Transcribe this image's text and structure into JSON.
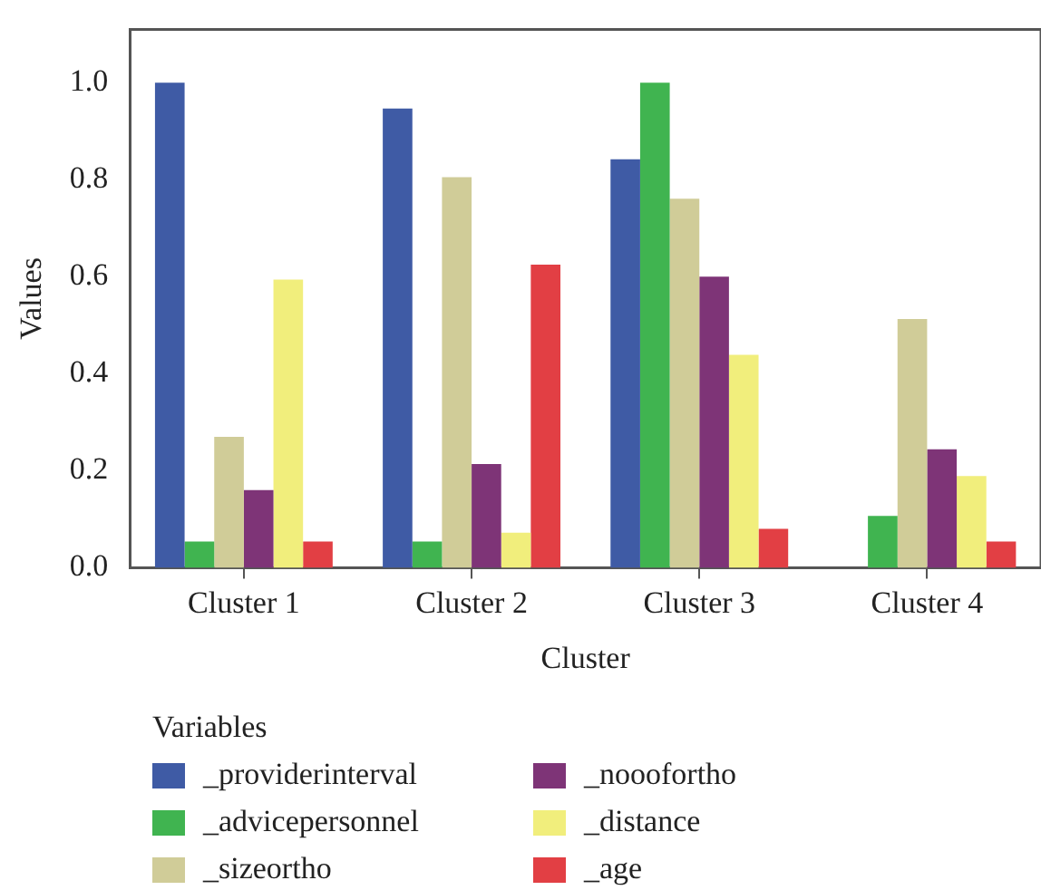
{
  "chart_data": {
    "type": "bar",
    "xlabel": "Cluster",
    "ylabel": "Values",
    "legend_title": "Variables",
    "categories": [
      "Cluster 1",
      "Cluster 2",
      "Cluster 3",
      "Cluster 4"
    ],
    "series": [
      {
        "name": "_providerinterval",
        "color": "#3f5ba5",
        "values": [
          1.0,
          0.947,
          0.842,
          0
        ]
      },
      {
        "name": "_advicepersonnel",
        "color": "#40b450",
        "values": [
          0.054,
          0.054,
          1.0,
          0.107
        ]
      },
      {
        "name": "_sizeortho",
        "color": "#d0cc98",
        "values": [
          0.27,
          0.805,
          0.761,
          0.513
        ]
      },
      {
        "name": "_nooofortho",
        "color": "#7e3477",
        "values": [
          0.16,
          0.214,
          0.6,
          0.244
        ]
      },
      {
        "name": "_distance",
        "color": "#f1ee7c",
        "values": [
          0.594,
          0.072,
          0.439,
          0.189
        ]
      },
      {
        "name": "_age",
        "color": "#e23f44",
        "values": [
          0.054,
          0.625,
          0.08,
          0.054
        ]
      }
    ],
    "ylim": [
      0,
      1.11
    ],
    "yticks": [
      {
        "value": 0,
        "label": "0.0"
      },
      {
        "value": 0.2,
        "label": "0.2"
      },
      {
        "value": 0.4,
        "label": "0.4"
      },
      {
        "value": 0.6,
        "label": "0.6"
      },
      {
        "value": 0.8,
        "label": "0.8"
      },
      {
        "value": 1,
        "label": "1.0"
      }
    ],
    "grid": false,
    "legend": "bottom"
  }
}
